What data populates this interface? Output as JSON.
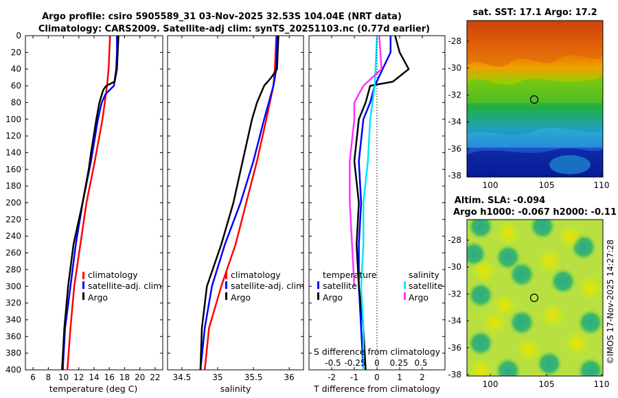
{
  "title_line1": "Argo profile: csiro 5905589_31 03-Nov-2025 32.53S 104.04E (NRT data)",
  "title_line2": "Climatology: CARS2009. Satellite-adj clim: synTS_20251103.nc (0.77d earlier)",
  "watermark": "©IMOS 17-Nov-2025 14:27:28",
  "depth_ticks": [
    "0",
    "20",
    "40",
    "60",
    "80",
    "100",
    "120",
    "140",
    "160",
    "180",
    "200",
    "220",
    "240",
    "260",
    "280",
    "300",
    "320",
    "340",
    "360",
    "380",
    "400"
  ],
  "colors": {
    "climatology": "#ff0000",
    "satellite": "#0000ff",
    "argo": "#000000",
    "sat_s": "#00e5ff",
    "argo_s": "#ff33ff"
  },
  "chart_data": [
    {
      "type": "line",
      "name": "temperature",
      "xlabel": "temperature (deg C)",
      "xlim": [
        5,
        23
      ],
      "xticks": [
        6,
        8,
        10,
        12,
        14,
        16,
        18,
        20,
        22
      ],
      "ylim": [
        0,
        400
      ],
      "ylabel_reversed": true,
      "legend": [
        "climatology",
        "satellite-adj. clim",
        "Argo"
      ],
      "series": [
        {
          "name": "climatology",
          "depth": [
            0,
            20,
            40,
            60,
            80,
            100,
            150,
            200,
            250,
            300,
            350,
            400
          ],
          "values": [
            16.1,
            16.0,
            15.9,
            15.7,
            15.4,
            15.1,
            14.1,
            13.0,
            12.2,
            11.4,
            10.9,
            10.5
          ]
        },
        {
          "name": "satellite-adj. clim",
          "depth": [
            0,
            20,
            40,
            60,
            70,
            80,
            100,
            150,
            200,
            250,
            300,
            350,
            400
          ],
          "values": [
            17.0,
            17.0,
            16.9,
            16.6,
            15.5,
            15.0,
            14.5,
            13.6,
            12.5,
            11.6,
            10.9,
            10.2,
            9.9
          ]
        },
        {
          "name": "Argo",
          "depth": [
            0,
            20,
            40,
            55,
            60,
            65,
            80,
            100,
            140,
            160,
            200,
            250,
            300,
            350,
            400
          ],
          "values": [
            17.2,
            17.1,
            17.0,
            16.7,
            15.6,
            15.2,
            14.7,
            14.3,
            13.6,
            13.3,
            12.5,
            11.3,
            10.6,
            10.1,
            9.8
          ]
        }
      ]
    },
    {
      "type": "line",
      "name": "salinity",
      "xlabel": "salinity",
      "xlim": [
        34.3,
        36.2
      ],
      "xticks": [
        34.5,
        35,
        35.5,
        36
      ],
      "xticklabels": [
        "34.5",
        "35",
        "35.5",
        "36"
      ],
      "ylim": [
        0,
        400
      ],
      "legend": [
        "climatology",
        "satellite-adj. clim",
        "Argo"
      ],
      "series": [
        {
          "name": "climatology",
          "depth": [
            0,
            40,
            60,
            100,
            150,
            200,
            250,
            300,
            350,
            400
          ],
          "values": [
            35.82,
            35.8,
            35.78,
            35.68,
            35.55,
            35.4,
            35.25,
            35.05,
            34.88,
            34.82
          ]
        },
        {
          "name": "satellite-adj. clim",
          "depth": [
            0,
            40,
            60,
            100,
            150,
            200,
            250,
            300,
            350,
            400
          ],
          "values": [
            35.83,
            35.82,
            35.78,
            35.65,
            35.5,
            35.32,
            35.1,
            34.92,
            34.82,
            34.76
          ]
        },
        {
          "name": "Argo",
          "depth": [
            0,
            40,
            50,
            60,
            80,
            100,
            150,
            200,
            250,
            300,
            350,
            400
          ],
          "values": [
            35.85,
            35.83,
            35.75,
            35.65,
            35.55,
            35.48,
            35.35,
            35.22,
            35.05,
            34.85,
            34.78,
            34.76
          ]
        }
      ]
    },
    {
      "type": "line",
      "name": "difference",
      "xlabel": "T difference from climatology",
      "xlim": [
        -3,
        3
      ],
      "xticks": [
        -2,
        -1,
        0,
        1,
        2
      ],
      "ylim": [
        0,
        400
      ],
      "upper_axis_label": "S difference from climatology",
      "upper_ticklabels": [
        "-0.5",
        "-0.25",
        "0",
        "0.25",
        "0.5"
      ],
      "legend_left": {
        "title": "temperature",
        "items": [
          "satellite",
          "Argo"
        ]
      },
      "legend_right": {
        "title": "salinity",
        "items": [
          "satellite",
          "Argo"
        ]
      },
      "series": [
        {
          "name": "temperature satellite",
          "depth": [
            0,
            20,
            60,
            80,
            100,
            150,
            200,
            250,
            300,
            350,
            400
          ],
          "values": [
            0.6,
            0.6,
            -0.1,
            -0.3,
            -0.6,
            -0.8,
            -0.7,
            -0.8,
            -0.8,
            -0.7,
            -0.6
          ]
        },
        {
          "name": "temperature Argo",
          "depth": [
            0,
            20,
            40,
            55,
            60,
            80,
            100,
            150,
            200,
            250,
            300,
            350,
            400
          ],
          "values": [
            0.8,
            1.0,
            1.4,
            0.7,
            -0.3,
            -0.5,
            -0.8,
            -1.0,
            -0.8,
            -0.9,
            -0.8,
            -0.6,
            -0.5
          ]
        },
        {
          "name": "salinity satellite",
          "depth": [
            0,
            60,
            100,
            150,
            200,
            250,
            300,
            350,
            400
          ],
          "values": [
            0.0,
            -0.1,
            -0.3,
            -0.4,
            -0.6,
            -0.6,
            -0.7,
            -0.6,
            -0.6
          ]
        },
        {
          "name": "salinity Argo",
          "depth": [
            0,
            40,
            60,
            80,
            100,
            150,
            200,
            250,
            300
          ],
          "values": [
            0.1,
            0.2,
            -0.6,
            -1.0,
            -1.0,
            -1.2,
            -1.2,
            -1.1,
            -1.0
          ]
        }
      ]
    }
  ],
  "maps": [
    {
      "name": "sst",
      "title": "sat. SST: 17.1 Argo: 17.2",
      "xticks": [
        "100",
        "105",
        "110"
      ],
      "yticks": [
        "-28",
        "-30",
        "-32",
        "-34",
        "-36",
        "-38"
      ],
      "marker_lon": 104.04,
      "marker_lat": -32.53
    },
    {
      "name": "sla",
      "title1": "Altim. SLA: -0.094",
      "title2": "Argo h1000: -0.067 h2000: -0.11",
      "xticks": [
        "100",
        "105",
        "110"
      ],
      "yticks": [
        "-28",
        "-30",
        "-32",
        "-34",
        "-36",
        "-38"
      ],
      "marker_lon": 104.04,
      "marker_lat": -32.53
    }
  ],
  "legend_labels": {
    "climatology": "climatology",
    "satellite_adj": "satellite-adj. clim",
    "argo": "Argo",
    "temperature": "temperature",
    "salinity": "salinity",
    "satellite": "satellite"
  }
}
